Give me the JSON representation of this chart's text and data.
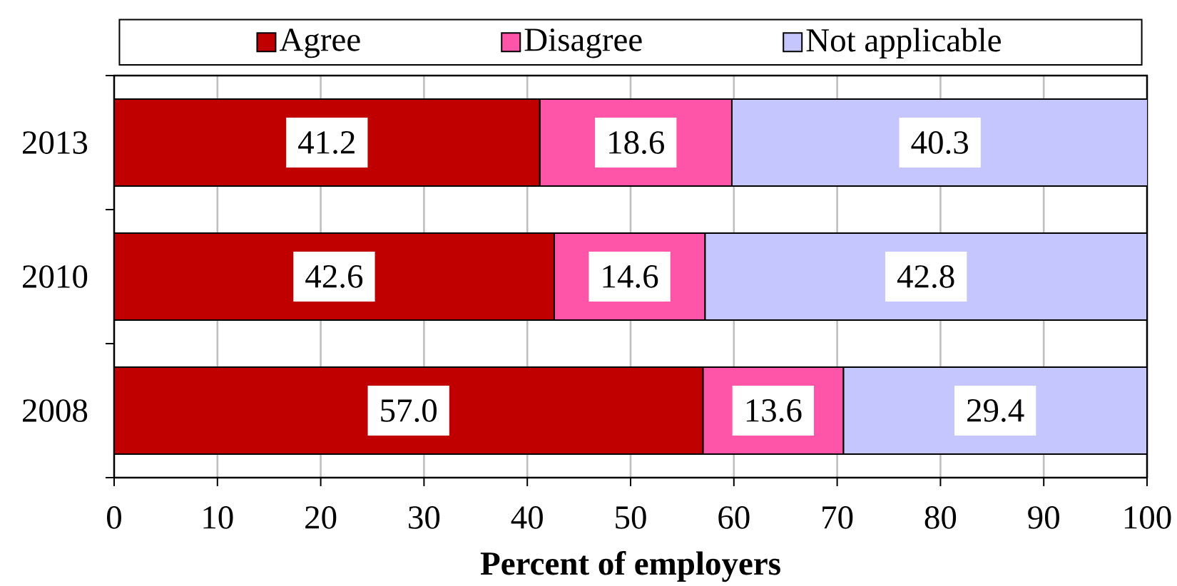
{
  "chart_data": {
    "type": "bar",
    "orientation": "horizontal",
    "stacked": true,
    "categories": [
      "2013",
      "2010",
      "2008"
    ],
    "series": [
      {
        "name": "Agree",
        "color": "#c00000",
        "values": [
          41.2,
          42.6,
          57.0
        ],
        "value_labels": [
          "41.2",
          "42.6",
          "57.0"
        ]
      },
      {
        "name": "Disagree",
        "color": "#ff55a8",
        "values": [
          18.6,
          14.6,
          13.6
        ],
        "value_labels": [
          "18.6",
          "14.6",
          "13.6"
        ]
      },
      {
        "name": "Not applicable",
        "color": "#c6c6ff",
        "values": [
          40.3,
          42.8,
          29.4
        ],
        "value_labels": [
          "40.3",
          "42.8",
          "29.4"
        ]
      }
    ],
    "xlabel": "Percent of employers",
    "xlim": [
      0,
      100
    ],
    "xticks": [
      0,
      10,
      20,
      30,
      40,
      50,
      60,
      70,
      80,
      90,
      100
    ],
    "grid": "x",
    "legend": "top"
  }
}
